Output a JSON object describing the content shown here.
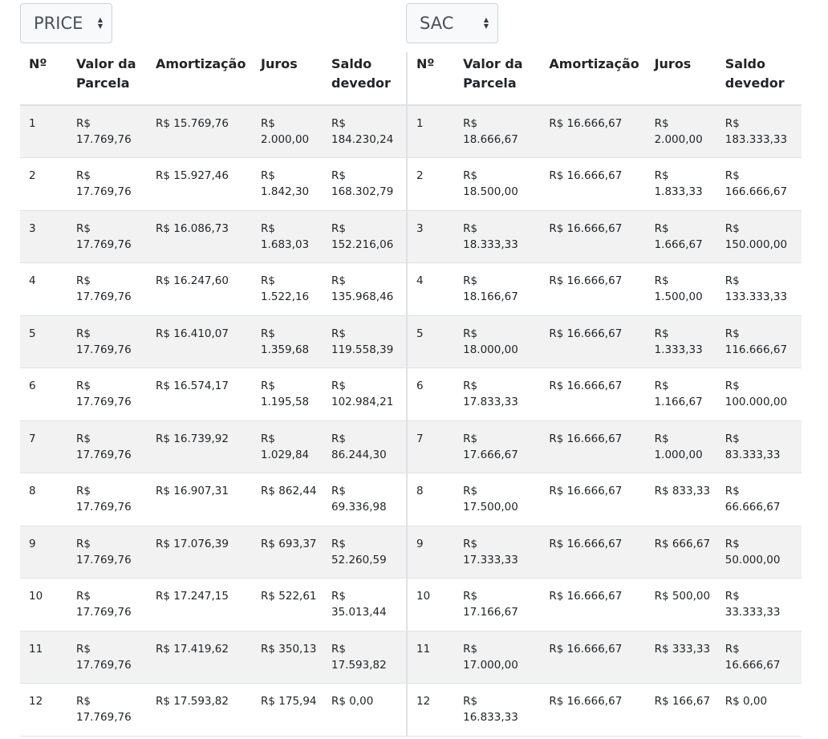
{
  "price": {
    "select_value": "PRICE",
    "headers": [
      "Nº",
      "Valor da Parcela",
      "Amortização",
      "Juros",
      "Saldo devedor"
    ],
    "rows": [
      [
        "1",
        "R$ 17.769,76",
        "R$ 15.769,76",
        "R$ 2.000,00",
        "R$ 184.230,24"
      ],
      [
        "2",
        "R$ 17.769,76",
        "R$ 15.927,46",
        "R$ 1.842,30",
        "R$ 168.302,79"
      ],
      [
        "3",
        "R$ 17.769,76",
        "R$ 16.086,73",
        "R$ 1.683,03",
        "R$ 152.216,06"
      ],
      [
        "4",
        "R$ 17.769,76",
        "R$ 16.247,60",
        "R$ 1.522,16",
        "R$ 135.968,46"
      ],
      [
        "5",
        "R$ 17.769,76",
        "R$ 16.410,07",
        "R$ 1.359,68",
        "R$ 119.558,39"
      ],
      [
        "6",
        "R$ 17.769,76",
        "R$ 16.574,17",
        "R$ 1.195,58",
        "R$ 102.984,21"
      ],
      [
        "7",
        "R$ 17.769,76",
        "R$ 16.739,92",
        "R$ 1.029,84",
        "R$ 86.244,30"
      ],
      [
        "8",
        "R$ 17.769,76",
        "R$ 16.907,31",
        "R$ 862,44",
        "R$ 69.336,98"
      ],
      [
        "9",
        "R$ 17.769,76",
        "R$ 17.076,39",
        "R$ 693,37",
        "R$ 52.260,59"
      ],
      [
        "10",
        "R$ 17.769,76",
        "R$ 17.247,15",
        "R$ 522,61",
        "R$ 35.013,44"
      ],
      [
        "11",
        "R$ 17.769,76",
        "R$ 17.419,62",
        "R$ 350,13",
        "R$ 17.593,82"
      ],
      [
        "12",
        "R$ 17.769,76",
        "R$ 17.593,82",
        "R$ 175,94",
        "R$ 0,00"
      ]
    ]
  },
  "sac": {
    "select_value": "SAC",
    "headers": [
      "Nº",
      "Valor da Parcela",
      "Amortização",
      "Juros",
      "Saldo devedor"
    ],
    "rows": [
      [
        "1",
        "R$ 18.666,67",
        "R$ 16.666,67",
        "R$ 2.000,00",
        "R$ 183.333,33"
      ],
      [
        "2",
        "R$ 18.500,00",
        "R$ 16.666,67",
        "R$ 1.833,33",
        "R$ 166.666,67"
      ],
      [
        "3",
        "R$ 18.333,33",
        "R$ 16.666,67",
        "R$ 1.666,67",
        "R$ 150.000,00"
      ],
      [
        "4",
        "R$ 18.166,67",
        "R$ 16.666,67",
        "R$ 1.500,00",
        "R$ 133.333,33"
      ],
      [
        "5",
        "R$ 18.000,00",
        "R$ 16.666,67",
        "R$ 1.333,33",
        "R$ 116.666,67"
      ],
      [
        "6",
        "R$ 17.833,33",
        "R$ 16.666,67",
        "R$ 1.166,67",
        "R$ 100.000,00"
      ],
      [
        "7",
        "R$ 17.666,67",
        "R$ 16.666,67",
        "R$ 1.000,00",
        "R$ 83.333,33"
      ],
      [
        "8",
        "R$ 17.500,00",
        "R$ 16.666,67",
        "R$ 833,33",
        "R$ 66.666,67"
      ],
      [
        "9",
        "R$ 17.333,33",
        "R$ 16.666,67",
        "R$ 666,67",
        "R$ 50.000,00"
      ],
      [
        "10",
        "R$ 17.166,67",
        "R$ 16.666,67",
        "R$ 500,00",
        "R$ 33.333,33"
      ],
      [
        "11",
        "R$ 17.000,00",
        "R$ 16.666,67",
        "R$ 333,33",
        "R$ 16.666,67"
      ],
      [
        "12",
        "R$ 16.833,33",
        "R$ 16.666,67",
        "R$ 166,67",
        "R$ 0,00"
      ]
    ]
  }
}
